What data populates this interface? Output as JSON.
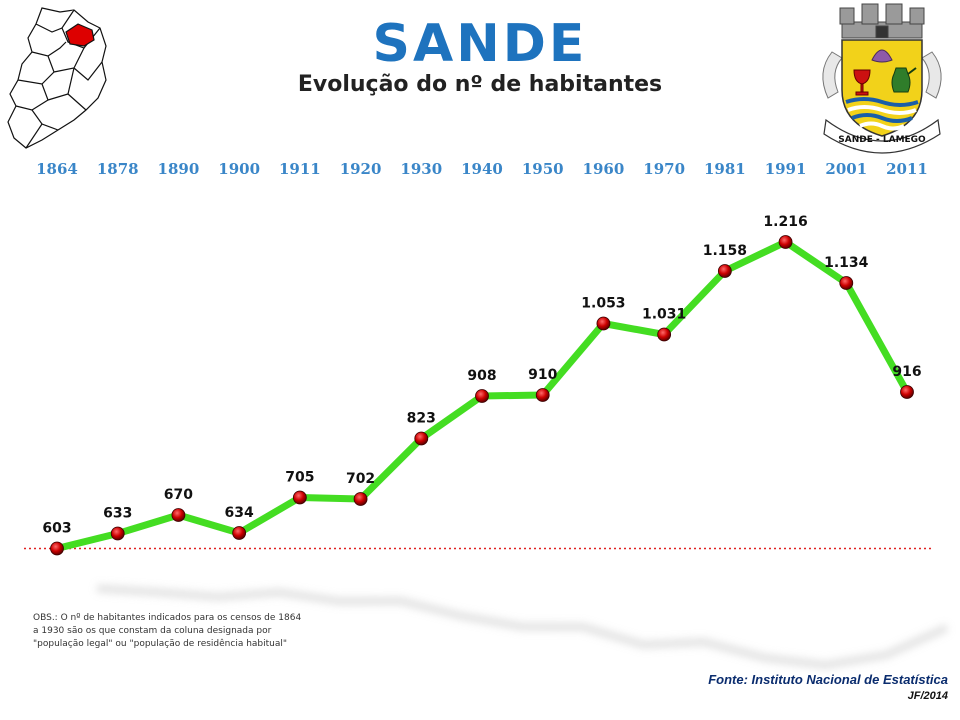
{
  "header": {
    "title": "SANDE",
    "subtitle": "Evolução do nº de habitantes"
  },
  "crest": {
    "banner_text": "SANDE - LAMEGO"
  },
  "chart_data": {
    "type": "line",
    "x": [
      "1864",
      "1878",
      "1890",
      "1900",
      "1911",
      "1920",
      "1930",
      "1940",
      "1950",
      "1960",
      "1970",
      "1981",
      "1991",
      "2001",
      "2011"
    ],
    "series": [
      {
        "values": [
          603,
          633,
          670,
          634,
          705,
          702,
          823,
          908,
          910,
          1053,
          1031,
          1158,
          1216,
          1134,
          916
        ]
      }
    ],
    "value_labels": [
      "603",
      "633",
      "670",
      "634",
      "705",
      "702",
      "823",
      "908",
      "910",
      "1.053",
      "1.031",
      "1.158",
      "1.216",
      "1.134",
      "916"
    ],
    "reference_line": 603,
    "ylim": [
      500,
      1300
    ],
    "line_color": "#44dd22",
    "marker_color": "#cc0000",
    "reference_color": "#e02020",
    "year_label_color": "#3a86c8"
  },
  "footer": {
    "note": "OBS.: O nº de habitantes indicados para os censos de 1864 a 1930 são os que constam da coluna designada por \"população legal\" ou \"população de residência habitual\"",
    "source": "Fonte: Instituto Nacional de Estatística",
    "credit": "JF/2014"
  }
}
